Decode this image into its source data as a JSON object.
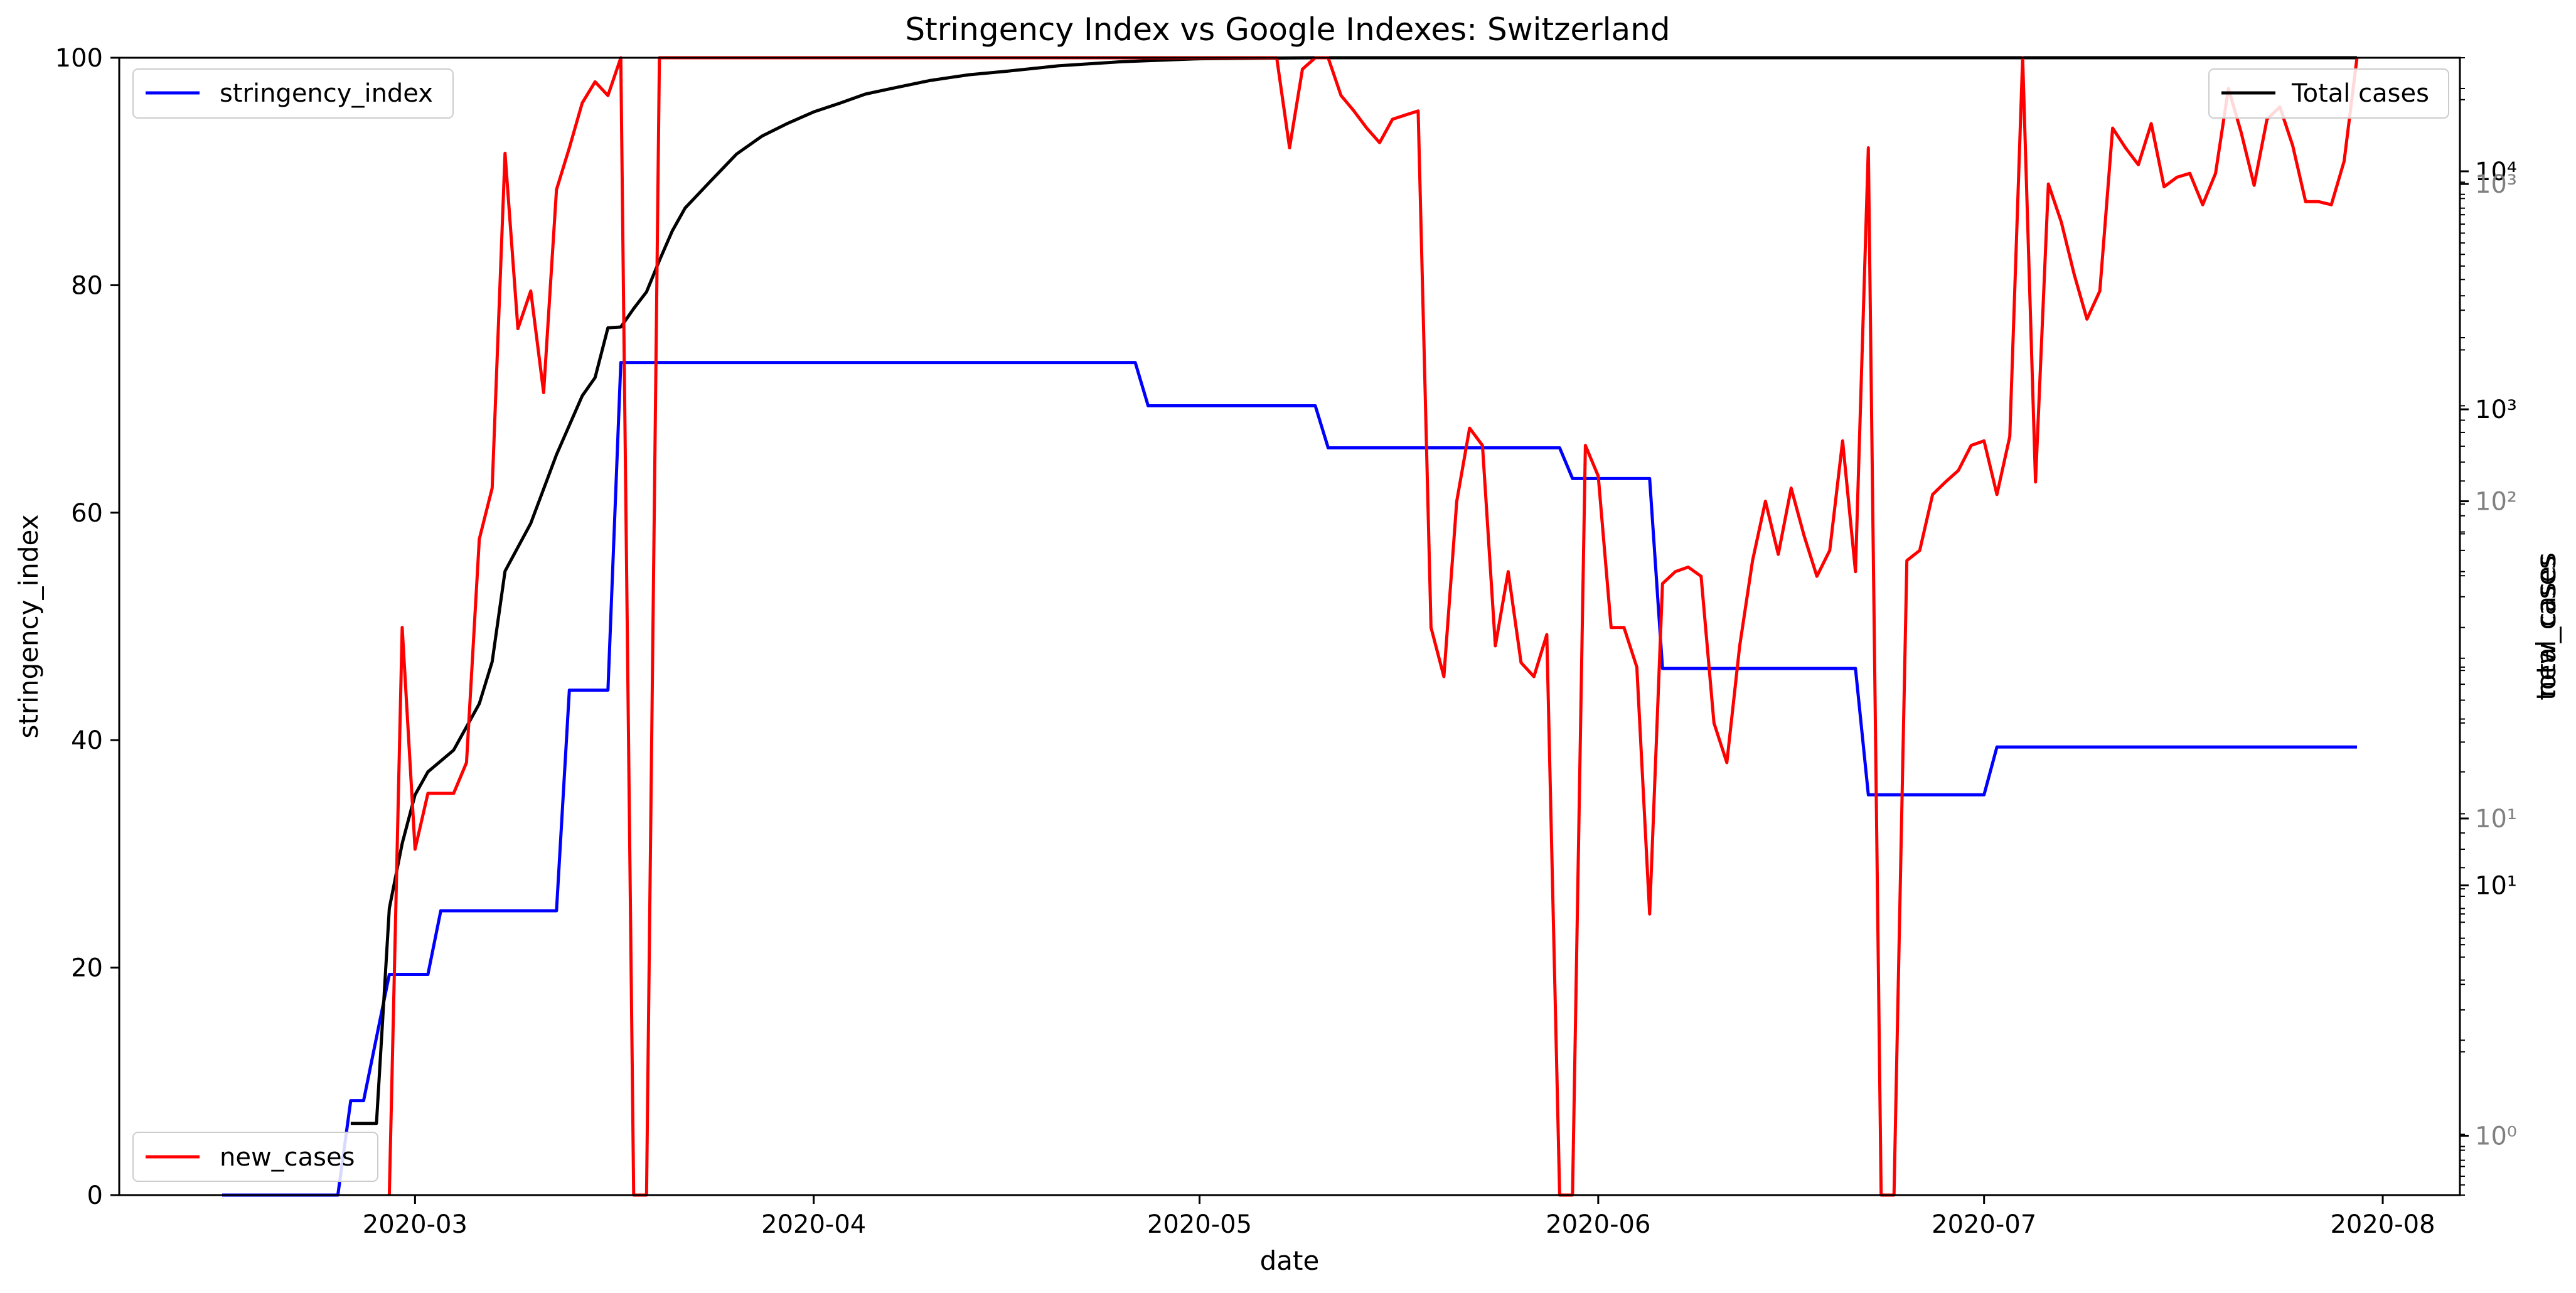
{
  "chart_data": {
    "type": "line",
    "title": "Stringency Index vs Google Indexes:  Switzerland",
    "xlabel": "date",
    "ylabel_left": "stringency_index",
    "ylabel_right": [
      "total_cases",
      "new_cases"
    ],
    "x_range": [
      "2020-02-07",
      "2020-08-07"
    ],
    "x_ticks": [
      "2020-03",
      "2020-04",
      "2020-05",
      "2020-06",
      "2020-07",
      "2020-08"
    ],
    "y_left": {
      "range": [
        0,
        100
      ],
      "ticks": [
        "0",
        "20",
        "40",
        "60",
        "80",
        "100"
      ]
    },
    "y_total": {
      "scale": "log",
      "range": [
        0.5,
        30000
      ],
      "ticks": [
        {
          "value": 10,
          "label": "10¹"
        },
        {
          "value": 1000,
          "label": "10³"
        },
        {
          "value": 10000,
          "label": "10⁴"
        }
      ]
    },
    "y_new": {
      "scale": "log",
      "range": [
        0.65,
        2500
      ],
      "ticks": [
        {
          "value": 1,
          "label": "10⁰"
        },
        {
          "value": 10,
          "label": "10¹"
        },
        {
          "value": 100,
          "label": "10²"
        },
        {
          "value": 1000,
          "label": "10³"
        }
      ]
    },
    "legend_positions": {
      "stringency_index": "upper left",
      "Total cases": "upper right",
      "new_cases": "lower left"
    },
    "grid": false,
    "colors": {
      "stringency_index": "#0000ff",
      "new_cases": "#ff0000",
      "total_cases": "#000000",
      "secondary_ticks": "#808080"
    },
    "series": [
      {
        "name": "stringency_index",
        "axis": "left",
        "points": [
          [
            "2020-02-15",
            0
          ],
          [
            "2020-02-24",
            0
          ],
          [
            "2020-02-25",
            8.3
          ],
          [
            "2020-02-26",
            8.3
          ],
          [
            "2020-02-28",
            19.4
          ],
          [
            "2020-03-02",
            19.4
          ],
          [
            "2020-03-03",
            25
          ],
          [
            "2020-03-12",
            25
          ],
          [
            "2020-03-13",
            44.4
          ],
          [
            "2020-03-16",
            44.4
          ],
          [
            "2020-03-17",
            73.2
          ],
          [
            "2020-04-26",
            73.2
          ],
          [
            "2020-04-27",
            69.4
          ],
          [
            "2020-05-10",
            69.4
          ],
          [
            "2020-05-11",
            65.7
          ],
          [
            "2020-05-29",
            65.7
          ],
          [
            "2020-05-30",
            63
          ],
          [
            "2020-06-05",
            63
          ],
          [
            "2020-06-06",
            46.3
          ],
          [
            "2020-06-21",
            46.3
          ],
          [
            "2020-06-22",
            35.2
          ],
          [
            "2020-07-01",
            35.2
          ],
          [
            "2020-07-02",
            39.4
          ],
          [
            "2020-07-30",
            39.4
          ]
        ]
      },
      {
        "name": "Total cases",
        "axis": "right_total",
        "points": [
          [
            "2020-02-25",
            1
          ],
          [
            "2020-02-26",
            1
          ],
          [
            "2020-02-27",
            1
          ],
          [
            "2020-02-28",
            8
          ],
          [
            "2020-02-29",
            15
          ],
          [
            "2020-03-01",
            24
          ],
          [
            "2020-03-02",
            30
          ],
          [
            "2020-03-04",
            37
          ],
          [
            "2020-03-06",
            58
          ],
          [
            "2020-03-07",
            87
          ],
          [
            "2020-03-08",
            209
          ],
          [
            "2020-03-10",
            332
          ],
          [
            "2020-03-12",
            645
          ],
          [
            "2020-03-14",
            1139
          ],
          [
            "2020-03-15",
            1359
          ],
          [
            "2020-03-16",
            2200
          ],
          [
            "2020-03-17",
            2217
          ],
          [
            "2020-03-18",
            2650
          ],
          [
            "2020-03-19",
            3115
          ],
          [
            "2020-03-20",
            4222
          ],
          [
            "2020-03-21",
            5615
          ],
          [
            "2020-03-22",
            7014
          ],
          [
            "2020-03-24",
            9117
          ],
          [
            "2020-03-26",
            11811
          ],
          [
            "2020-03-28",
            14076
          ],
          [
            "2020-03-30",
            15922
          ],
          [
            "2020-04-01",
            17768
          ],
          [
            "2020-04-03",
            19303
          ],
          [
            "2020-04-05",
            21100
          ],
          [
            "2020-04-07",
            22253
          ],
          [
            "2020-04-10",
            24051
          ],
          [
            "2020-04-13",
            25415
          ],
          [
            "2020-04-16",
            26336
          ],
          [
            "2020-04-20",
            27740
          ],
          [
            "2020-04-25",
            28894
          ],
          [
            "2020-05-01",
            29705
          ],
          [
            "2020-05-10",
            30305
          ],
          [
            "2020-05-20",
            30658
          ],
          [
            "2020-06-01",
            30874
          ],
          [
            "2020-06-10",
            31011
          ],
          [
            "2020-06-20",
            31292
          ],
          [
            "2020-06-30",
            31714
          ],
          [
            "2020-07-02",
            32100
          ],
          [
            "2020-07-10",
            33016
          ],
          [
            "2020-07-20",
            34302
          ],
          [
            "2020-07-30",
            34802
          ]
        ]
      },
      {
        "name": "new_cases",
        "axis": "right_new",
        "points": [
          [
            "2020-02-28",
            0.1
          ],
          [
            "2020-02-29",
            40
          ],
          [
            "2020-03-01",
            8
          ],
          [
            "2020-03-02",
            12
          ],
          [
            "2020-03-03",
            12
          ],
          [
            "2020-03-04",
            12
          ],
          [
            "2020-03-05",
            15
          ],
          [
            "2020-03-06",
            76
          ],
          [
            "2020-03-07",
            110
          ],
          [
            "2020-03-08",
            1250
          ],
          [
            "2020-03-09",
            350
          ],
          [
            "2020-03-10",
            460
          ],
          [
            "2020-03-11",
            220
          ],
          [
            "2020-03-12",
            960
          ],
          [
            "2020-03-13",
            1300
          ],
          [
            "2020-03-14",
            1800
          ],
          [
            "2020-03-15",
            2100
          ],
          [
            "2020-03-16",
            1900
          ],
          [
            "2020-03-17",
            22000
          ],
          [
            "2020-03-18",
            0.1
          ],
          [
            "2020-03-19",
            0.1
          ],
          [
            "2020-03-20",
            17000
          ],
          [
            "2020-03-21",
            13000
          ],
          [
            "2020-03-22",
            24000
          ],
          [
            "2020-03-23",
            26000
          ],
          [
            "2020-03-24",
            35000
          ],
          [
            "2020-03-25",
            28000
          ],
          [
            "2020-03-26",
            31000
          ],
          [
            "2020-03-27",
            25000
          ],
          [
            "2020-03-28",
            29000
          ],
          [
            "2020-03-29",
            31000
          ],
          [
            "2020-03-30",
            36000
          ],
          [
            "2020-03-31",
            29000
          ],
          [
            "2020-04-01",
            30000
          ],
          [
            "2020-04-02",
            30000
          ],
          [
            "2020-04-03",
            22000
          ],
          [
            "2020-04-04",
            26000
          ],
          [
            "2020-04-05",
            28000
          ],
          [
            "2020-04-06",
            26000
          ],
          [
            "2020-04-07",
            25000
          ],
          [
            "2020-04-08",
            23000
          ],
          [
            "2020-04-09",
            19500
          ],
          [
            "2020-04-10",
            20000
          ],
          [
            "2020-04-11",
            19500
          ],
          [
            "2020-04-12",
            22000
          ],
          [
            "2020-04-13",
            21500
          ],
          [
            "2020-04-14",
            19500
          ],
          [
            "2020-04-15",
            16000
          ],
          [
            "2020-04-16",
            13200
          ],
          [
            "2020-04-17",
            12500
          ],
          [
            "2020-04-18",
            19000
          ],
          [
            "2020-04-19",
            14500
          ],
          [
            "2020-04-20",
            15200
          ],
          [
            "2020-04-21",
            14700
          ],
          [
            "2020-04-22",
            14700
          ],
          [
            "2020-04-23",
            8000
          ],
          [
            "2020-04-24",
            7600
          ],
          [
            "2020-04-25",
            8500
          ],
          [
            "2020-04-26",
            9000
          ],
          [
            "2020-04-27",
            8200
          ],
          [
            "2020-04-28",
            9000
          ],
          [
            "2020-04-29",
            8000
          ],
          [
            "2020-04-30",
            4500
          ],
          [
            "2020-05-01",
            4400
          ],
          [
            "2020-05-02",
            5800
          ],
          [
            "2020-05-03",
            7800
          ],
          [
            "2020-05-04",
            4800
          ],
          [
            "2020-05-05",
            4400
          ],
          [
            "2020-05-06",
            3500
          ],
          [
            "2020-05-07",
            3200
          ],
          [
            "2020-05-08",
            1300
          ],
          [
            "2020-05-09",
            2300
          ],
          [
            "2020-05-10",
            2800
          ],
          [
            "2020-05-11",
            3400
          ],
          [
            "2020-05-12",
            1900
          ],
          [
            "2020-05-13",
            1700
          ],
          [
            "2020-05-14",
            1500
          ],
          [
            "2020-05-15",
            1350
          ],
          [
            "2020-05-16",
            1600
          ],
          [
            "2020-05-17",
            1650
          ],
          [
            "2020-05-18",
            1700
          ],
          [
            "2020-05-19",
            40
          ],
          [
            "2020-05-20",
            28
          ],
          [
            "2020-05-21",
            100
          ],
          [
            "2020-05-22",
            170
          ],
          [
            "2020-05-23",
            150
          ],
          [
            "2020-05-24",
            35
          ],
          [
            "2020-05-25",
            60
          ],
          [
            "2020-05-26",
            31
          ],
          [
            "2020-05-27",
            28
          ],
          [
            "2020-05-28",
            38
          ],
          [
            "2020-05-29",
            0.1
          ],
          [
            "2020-05-30",
            0.1
          ],
          [
            "2020-05-31",
            150
          ],
          [
            "2020-06-01",
            120
          ],
          [
            "2020-06-02",
            40
          ],
          [
            "2020-06-03",
            40
          ],
          [
            "2020-06-04",
            30
          ],
          [
            "2020-06-05",
            5
          ],
          [
            "2020-06-06",
            55
          ],
          [
            "2020-06-07",
            60
          ],
          [
            "2020-06-08",
            62
          ],
          [
            "2020-06-09",
            58
          ],
          [
            "2020-06-10",
            20
          ],
          [
            "2020-06-11",
            15
          ],
          [
            "2020-06-12",
            35
          ],
          [
            "2020-06-13",
            65
          ],
          [
            "2020-06-14",
            100
          ],
          [
            "2020-06-15",
            68
          ],
          [
            "2020-06-16",
            110
          ],
          [
            "2020-06-17",
            78
          ],
          [
            "2020-06-18",
            58
          ],
          [
            "2020-06-19",
            70
          ],
          [
            "2020-06-20",
            155
          ],
          [
            "2020-06-21",
            60
          ],
          [
            "2020-06-22",
            1300
          ],
          [
            "2020-06-23",
            0.1
          ],
          [
            "2020-06-24",
            0.1
          ],
          [
            "2020-06-25",
            65
          ],
          [
            "2020-06-26",
            70
          ],
          [
            "2020-06-27",
            105
          ],
          [
            "2020-06-28",
            115
          ],
          [
            "2020-06-29",
            125
          ],
          [
            "2020-06-30",
            150
          ],
          [
            "2020-07-01",
            155
          ],
          [
            "2020-07-02",
            105
          ],
          [
            "2020-07-03",
            160
          ],
          [
            "2020-07-04",
            2900
          ],
          [
            "2020-07-05",
            115
          ],
          [
            "2020-07-06",
            1000
          ],
          [
            "2020-07-07",
            760
          ],
          [
            "2020-07-08",
            520
          ],
          [
            "2020-07-09",
            375
          ],
          [
            "2020-07-10",
            460
          ],
          [
            "2020-07-11",
            1500
          ],
          [
            "2020-07-12",
            1300
          ],
          [
            "2020-07-13",
            1150
          ],
          [
            "2020-07-14",
            1550
          ],
          [
            "2020-07-15",
            980
          ],
          [
            "2020-07-16",
            1050
          ],
          [
            "2020-07-17",
            1080
          ],
          [
            "2020-07-18",
            860
          ],
          [
            "2020-07-19",
            1080
          ],
          [
            "2020-07-20",
            2000
          ],
          [
            "2020-07-21",
            1450
          ],
          [
            "2020-07-22",
            990
          ],
          [
            "2020-07-23",
            1600
          ],
          [
            "2020-07-24",
            1750
          ],
          [
            "2020-07-25",
            1320
          ],
          [
            "2020-07-26",
            880
          ],
          [
            "2020-07-27",
            880
          ],
          [
            "2020-07-28",
            860
          ],
          [
            "2020-07-29",
            1180
          ],
          [
            "2020-07-30",
            2800
          ]
        ]
      }
    ]
  }
}
